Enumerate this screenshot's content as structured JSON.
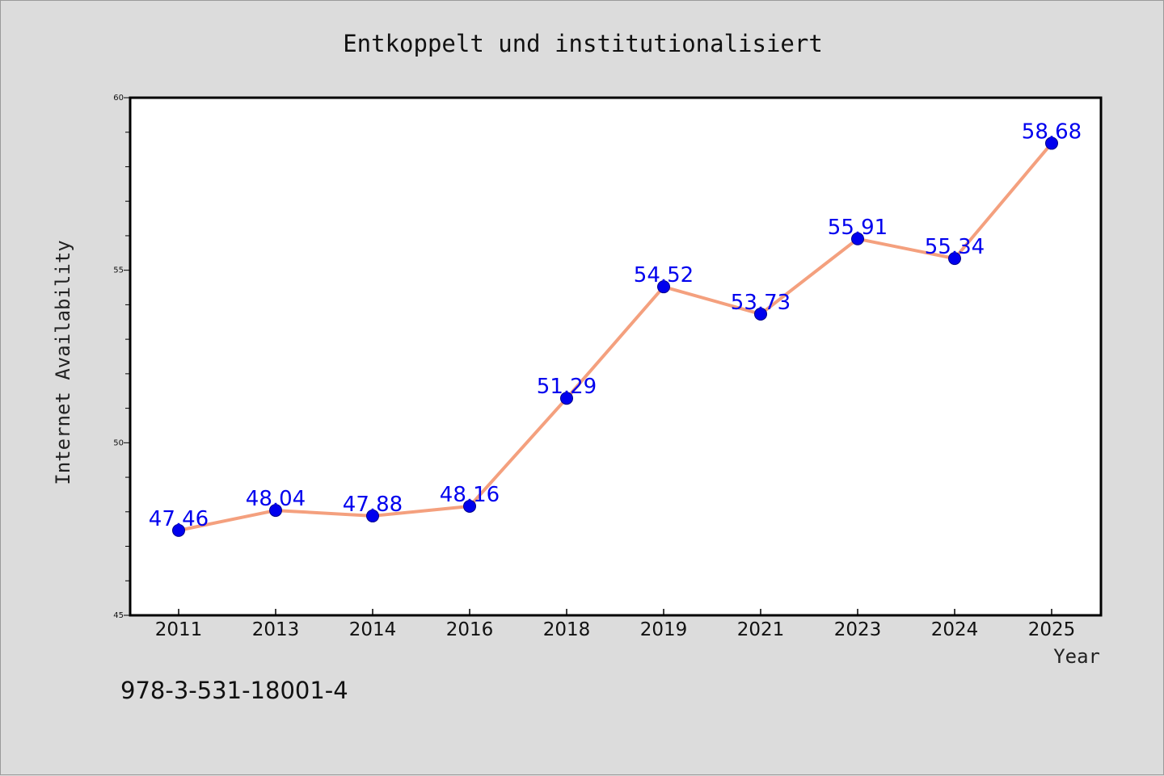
{
  "chart_data": {
    "type": "line",
    "title": "Entkoppelt und institutionalisiert",
    "xlabel": "Year",
    "ylabel": "Internet Availability",
    "categories": [
      "2011",
      "2013",
      "2014",
      "2016",
      "2018",
      "2019",
      "2021",
      "2023",
      "2024",
      "2025"
    ],
    "series": [
      {
        "values": [
          47.46,
          48.04,
          47.88,
          48.16,
          51.29,
          54.52,
          53.73,
          55.91,
          55.34,
          58.68
        ],
        "labels": [
          "47.46",
          "48.04",
          "47.88",
          "48.16",
          "51.29",
          "54.52",
          "53.73",
          "55.91",
          "55.34",
          "58.68"
        ],
        "line_color": "#f4a07e",
        "marker_color": "#0000ee"
      }
    ],
    "ylim": [
      45,
      60
    ],
    "yticks": [
      "45",
      "50",
      "55",
      "60"
    ],
    "grid": false,
    "legend": "none"
  },
  "footnote": "978-3-531-18001-4"
}
